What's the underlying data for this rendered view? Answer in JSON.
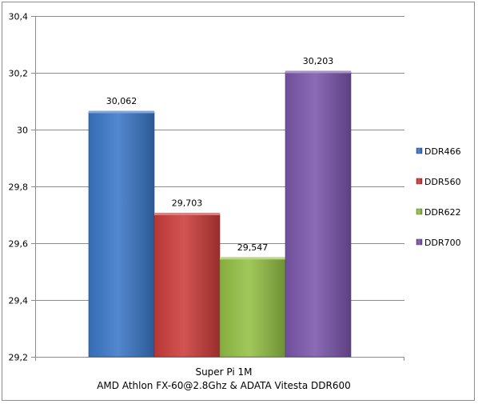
{
  "chart_data": {
    "type": "bar",
    "categories": [
      "Super Pi 1M\nAMD Athlon FX-60@2.8Ghz & ADATA Vitesta DDR600"
    ],
    "category_lines": [
      "Super Pi 1M",
      "AMD Athlon FX-60@2.8Ghz & ADATA Vitesta DDR600"
    ],
    "series": [
      {
        "name": "DDR466",
        "values": [
          30.062
        ],
        "label": "30,062",
        "color": "#3b78c8"
      },
      {
        "name": "DDR560",
        "values": [
          29.703
        ],
        "label": "29,703",
        "color": "#cc3d3a"
      },
      {
        "name": "DDR622",
        "values": [
          29.547
        ],
        "label": "29,547",
        "color": "#94c145"
      },
      {
        "name": "DDR700",
        "values": [
          30.203
        ],
        "label": "30,203",
        "color": "#7b57ac"
      }
    ],
    "ylim": [
      29.2,
      30.4
    ],
    "yticks": [
      30.4,
      30.2,
      30.0,
      29.8,
      29.6,
      29.4,
      29.2
    ],
    "ytick_labels": [
      "30,4",
      "30,2",
      "30",
      "29,8",
      "29,6",
      "29,4",
      "29,2"
    ],
    "grid": true,
    "legend_position": "right",
    "title": "",
    "xlabel": "",
    "ylabel": ""
  }
}
